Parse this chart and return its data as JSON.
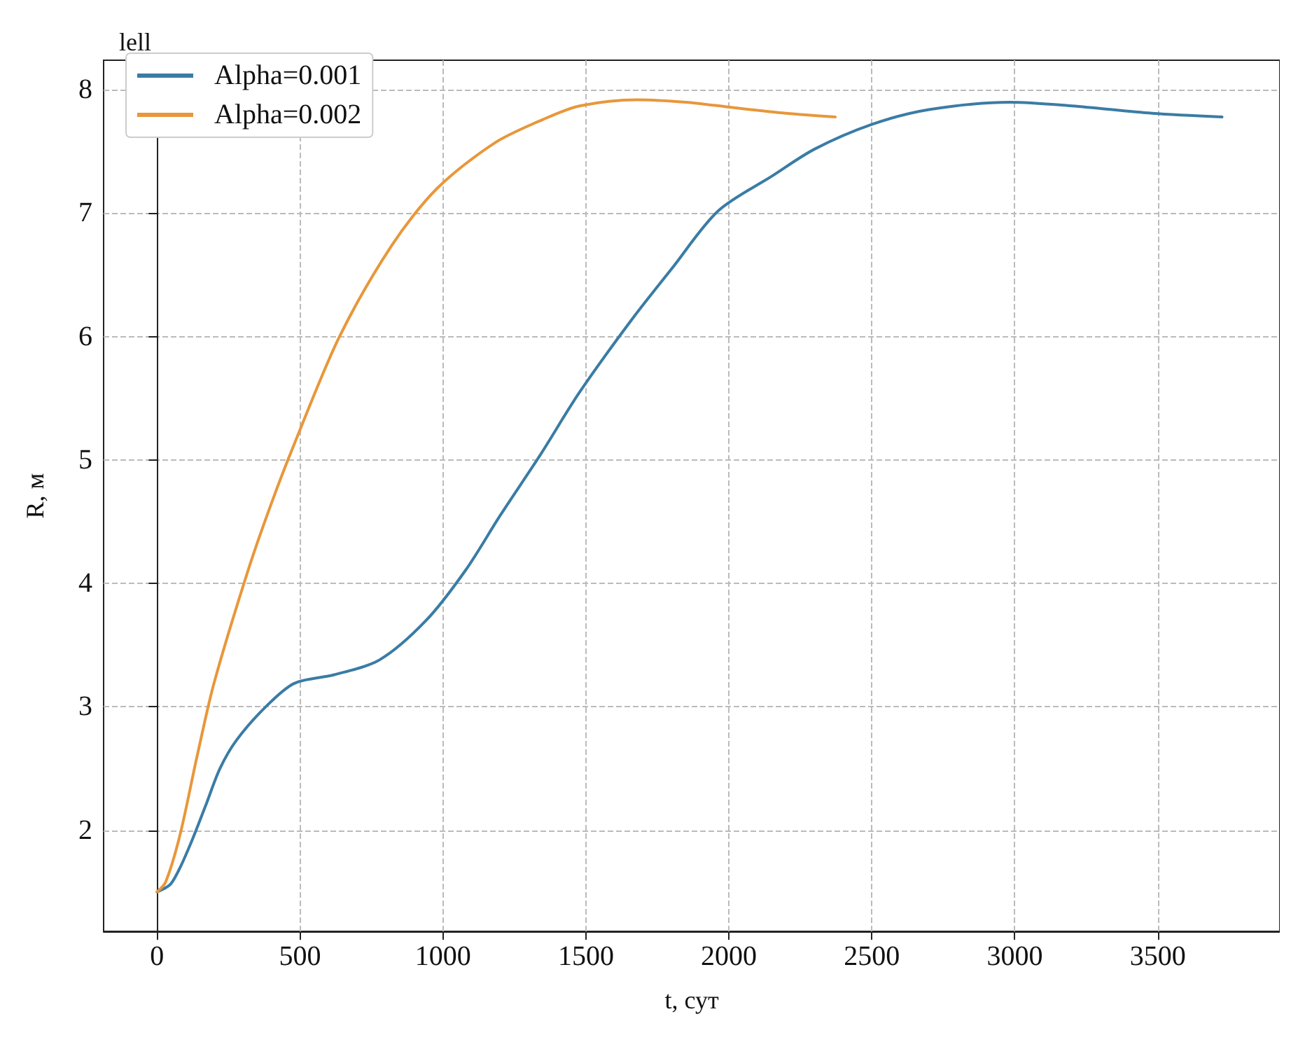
{
  "chart_data": {
    "type": "line",
    "title": "lell",
    "xlabel": "t, сут",
    "ylabel": "R, м",
    "xlim": [
      -187,
      3927
    ],
    "ylim": [
      1.18,
      8.24
    ],
    "xticks": [
      0,
      500,
      1000,
      1500,
      2000,
      2500,
      3000,
      3500
    ],
    "yticks": [
      2,
      3,
      4,
      5,
      6,
      7,
      8
    ],
    "grid": true,
    "legend": "top left",
    "marker": "none",
    "line_style": "solid",
    "series": [
      {
        "name": "Alpha=0.001",
        "color": "#3a7ca5",
        "x": [
          0,
          50,
          110,
          170,
          220,
          278,
          380,
          480,
          620,
          778,
          941,
          1080,
          1200,
          1340,
          1478,
          1661,
          1800,
          1963,
          2150,
          2300,
          2500,
          2700,
          2981,
          3200,
          3480,
          3725
        ],
        "values": [
          1.5,
          1.57,
          1.85,
          2.2,
          2.5,
          2.73,
          3.0,
          3.19,
          3.26,
          3.38,
          3.7,
          4.11,
          4.55,
          5.04,
          5.55,
          6.14,
          6.55,
          7.02,
          7.3,
          7.52,
          7.72,
          7.84,
          7.9,
          7.87,
          7.81,
          7.78
        ]
      },
      {
        "name": "Alpha=0.002",
        "color": "#e8973a",
        "x": [
          0,
          30,
          79,
          140,
          199,
          319,
          400,
          480,
          638,
          821,
          979,
          1181,
          1350,
          1478,
          1680,
          1850,
          2000,
          2200,
          2372
        ],
        "values": [
          1.5,
          1.58,
          1.95,
          2.6,
          3.19,
          4.11,
          4.65,
          5.13,
          6.0,
          6.74,
          7.2,
          7.57,
          7.76,
          7.87,
          7.92,
          7.9,
          7.86,
          7.81,
          7.78
        ]
      }
    ]
  }
}
